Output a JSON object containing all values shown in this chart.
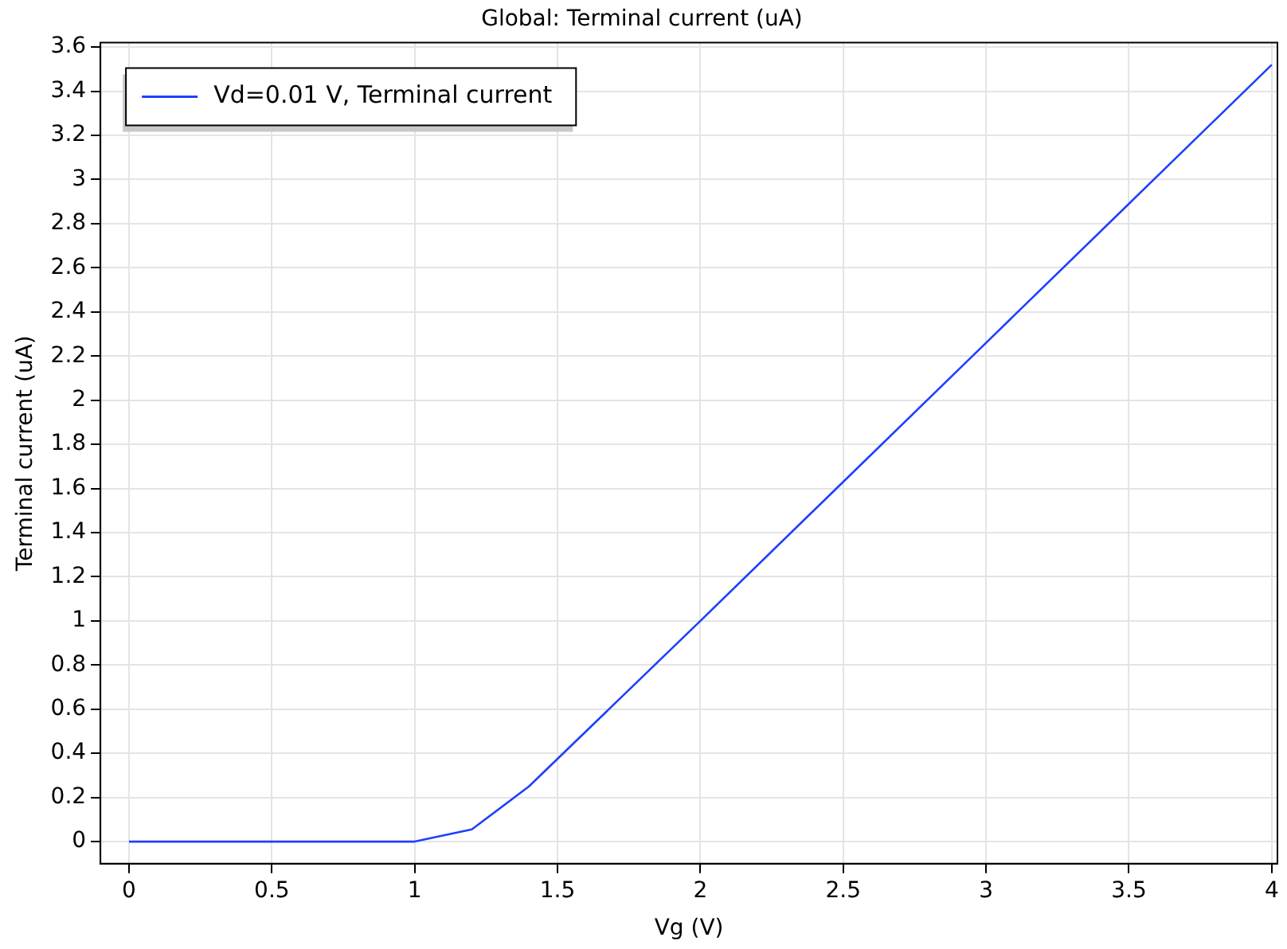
{
  "chart_data": {
    "type": "line",
    "title": "Global: Terminal current (uA)",
    "xlabel": "Vg (V)",
    "ylabel": "Terminal current (uA)",
    "x": [
      0,
      0.2,
      0.4,
      0.6,
      0.8,
      1,
      1.2,
      1.4,
      2,
      2.5,
      3,
      3.5,
      4
    ],
    "series": [
      {
        "name": "Vd=0.01 V, Terminal current",
        "color": "#1f3fff",
        "values": [
          0,
          0,
          0,
          0,
          0,
          0,
          0.055,
          0.25,
          1,
          1.63,
          2.26,
          2.89,
          3.52
        ]
      }
    ],
    "xlim": [
      -0.1,
      4.02
    ],
    "xticks": [
      0,
      0.5,
      1,
      1.5,
      2,
      2.5,
      3,
      3.5,
      4
    ],
    "ylim": [
      -0.1,
      3.62
    ],
    "yticks": [
      0,
      0.2,
      0.4,
      0.6,
      0.8,
      1,
      1.2,
      1.4,
      1.6,
      1.8,
      2,
      2.2,
      2.4,
      2.6,
      2.8,
      3,
      3.2,
      3.4,
      3.6
    ],
    "grid": true,
    "legend": "top left",
    "marker": "none",
    "line_style": "solid"
  }
}
